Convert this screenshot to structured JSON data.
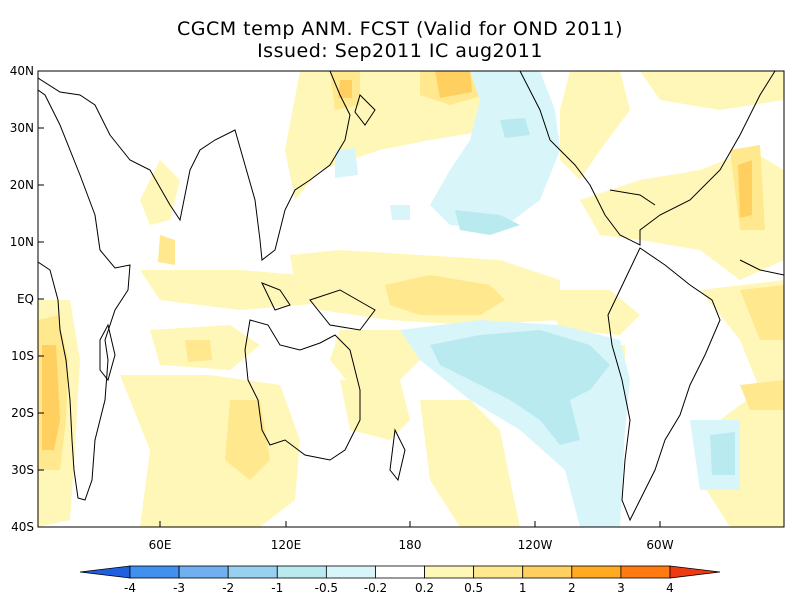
{
  "title": {
    "line1": "CGCM temp ANM. FCST  (Valid for OND 2011)",
    "line2": "Issued:  Sep2011 IC aug2011"
  },
  "axes": {
    "lat_labels": [
      "40N",
      "30N",
      "20N",
      "10N",
      "EQ",
      "10S",
      "20S",
      "30S",
      "40S"
    ],
    "lon_labels": [
      "60E",
      "120E",
      "180",
      "120W",
      "60W"
    ]
  },
  "colorbar": {
    "labels": [
      "-4",
      "-3",
      "-2",
      "-1",
      "-0.5",
      "-0.2",
      "0.2",
      "0.5",
      "1",
      "2",
      "3",
      "4"
    ],
    "colors": [
      "#2060e0",
      "#4090f0",
      "#70b0f0",
      "#98d0f0",
      "#b8eaf0",
      "#d8f6fa",
      "#ffffff",
      "#fff7b8",
      "#ffe88e",
      "#ffd060",
      "#ffaa20",
      "#ff7a10",
      "#ee3a10"
    ]
  }
}
